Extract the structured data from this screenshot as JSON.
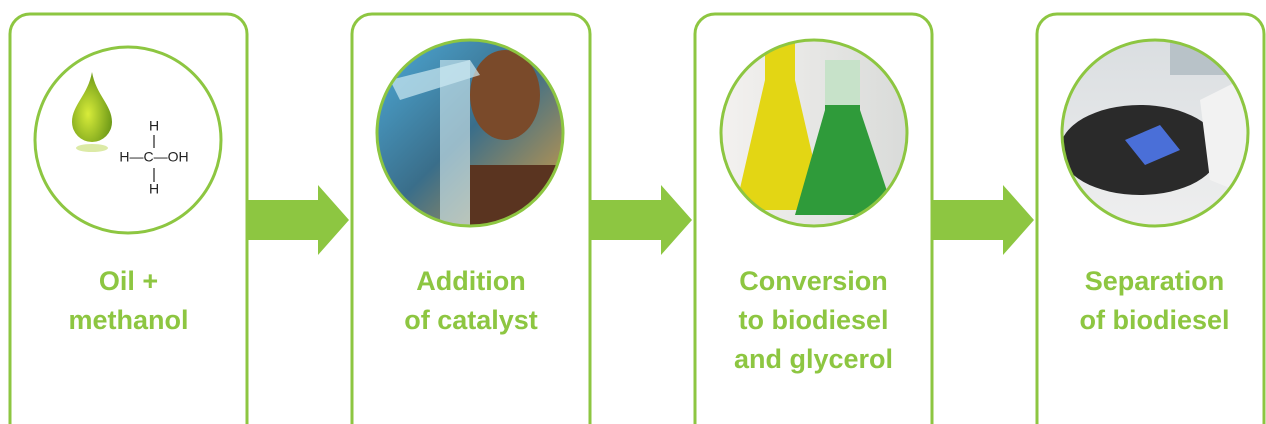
{
  "steps": [
    {
      "label_lines": [
        "Oil +",
        "methanol"
      ]
    },
    {
      "label_lines": [
        "Addition",
        "of catalyst"
      ]
    },
    {
      "label_lines": [
        "Conversion",
        "to biodiesel",
        "and glycerol"
      ]
    },
    {
      "label_lines": [
        "Separation",
        "of biodiesel"
      ]
    }
  ],
  "formula": {
    "top": "H",
    "middle": "H—C—OH",
    "bottom": "H"
  }
}
